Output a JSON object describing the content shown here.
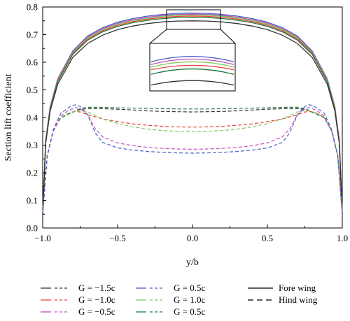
{
  "chart_data": {
    "type": "line",
    "xlabel": "y/b",
    "ylabel": "Section lift coefficient",
    "xlim": [
      -1.0,
      1.0
    ],
    "ylim": [
      0.0,
      0.8
    ],
    "x_ticks": [
      -1.0,
      -0.5,
      0.0,
      0.5,
      1.0
    ],
    "x_tick_labels": [
      "−1.0",
      "−0.5",
      "0.0",
      "0.5",
      "1.0"
    ],
    "y_ticks": [
      0.0,
      0.1,
      0.2,
      0.3,
      0.4,
      0.5,
      0.6,
      0.7,
      0.8
    ],
    "y_tick_labels": [
      "0.0",
      "0.1",
      "0.2",
      "0.3",
      "0.4",
      "0.5",
      "0.6",
      "0.7",
      "0.8"
    ],
    "grid": false,
    "legend": [
      {
        "label": "G = −1.5c",
        "color": "#333333",
        "style": "solid-dash"
      },
      {
        "label": "G = −1.0c",
        "color": "#e8443a",
        "style": "solid-dash"
      },
      {
        "label": "G = −0.5c",
        "color": "#c04fc0",
        "style": "solid-dash"
      },
      {
        "label": "G = 0.5c",
        "color": "#4a5fbf",
        "style": "solid-dash"
      },
      {
        "label": "G = 1.0c",
        "color": "#7dcc5a",
        "style": "solid-dash"
      },
      {
        "label": "G = 0.5c",
        "color": "#1f7a3c",
        "style": "solid-dash"
      },
      {
        "label": "Fore wing",
        "color": "#000000",
        "style": "solid"
      },
      {
        "label": "Hind wing",
        "color": "#000000",
        "style": "dashed"
      }
    ],
    "fore_wing_series": [
      {
        "color": "#4a5fbf",
        "x": [
          -1.0,
          -0.98,
          -0.95,
          -0.9,
          -0.8,
          -0.7,
          -0.6,
          -0.5,
          -0.4,
          -0.3,
          -0.2,
          -0.1,
          0.0,
          0.1,
          0.2,
          0.3,
          0.4,
          0.5,
          0.6,
          0.7,
          0.8,
          0.9,
          0.95,
          0.98,
          1.0
        ],
        "y": [
          0.05,
          0.32,
          0.44,
          0.54,
          0.64,
          0.695,
          0.725,
          0.745,
          0.758,
          0.767,
          0.773,
          0.777,
          0.778,
          0.777,
          0.773,
          0.767,
          0.758,
          0.745,
          0.725,
          0.695,
          0.64,
          0.54,
          0.44,
          0.32,
          0.05
        ]
      },
      {
        "color": "#c04fc0",
        "x": [
          -1.0,
          -0.98,
          -0.95,
          -0.9,
          -0.8,
          -0.7,
          -0.6,
          -0.5,
          -0.4,
          -0.3,
          -0.2,
          -0.1,
          0.0,
          0.1,
          0.2,
          0.3,
          0.4,
          0.5,
          0.6,
          0.7,
          0.8,
          0.9,
          0.95,
          0.98,
          1.0
        ],
        "y": [
          0.05,
          0.318,
          0.438,
          0.538,
          0.637,
          0.691,
          0.721,
          0.741,
          0.754,
          0.763,
          0.769,
          0.773,
          0.774,
          0.773,
          0.769,
          0.763,
          0.754,
          0.741,
          0.721,
          0.691,
          0.637,
          0.538,
          0.438,
          0.318,
          0.05
        ]
      },
      {
        "color": "#7dcc5a",
        "x": [
          -1.0,
          -0.98,
          -0.95,
          -0.9,
          -0.8,
          -0.7,
          -0.6,
          -0.5,
          -0.4,
          -0.3,
          -0.2,
          -0.1,
          0.0,
          0.1,
          0.2,
          0.3,
          0.4,
          0.5,
          0.6,
          0.7,
          0.8,
          0.9,
          0.95,
          0.98,
          1.0
        ],
        "y": [
          0.05,
          0.316,
          0.436,
          0.535,
          0.634,
          0.688,
          0.718,
          0.738,
          0.751,
          0.76,
          0.766,
          0.77,
          0.771,
          0.77,
          0.766,
          0.76,
          0.751,
          0.738,
          0.718,
          0.688,
          0.634,
          0.535,
          0.436,
          0.316,
          0.05
        ]
      },
      {
        "color": "#e8443a",
        "x": [
          -1.0,
          -0.98,
          -0.95,
          -0.9,
          -0.8,
          -0.7,
          -0.6,
          -0.5,
          -0.4,
          -0.3,
          -0.2,
          -0.1,
          0.0,
          0.1,
          0.2,
          0.3,
          0.4,
          0.5,
          0.6,
          0.7,
          0.8,
          0.9,
          0.95,
          0.98,
          1.0
        ],
        "y": [
          0.05,
          0.314,
          0.434,
          0.532,
          0.631,
          0.684,
          0.714,
          0.734,
          0.747,
          0.756,
          0.762,
          0.766,
          0.767,
          0.766,
          0.762,
          0.756,
          0.747,
          0.734,
          0.714,
          0.684,
          0.631,
          0.532,
          0.434,
          0.314,
          0.05
        ]
      },
      {
        "color": "#1f7a3c",
        "x": [
          -1.0,
          -0.98,
          -0.95,
          -0.9,
          -0.8,
          -0.7,
          -0.6,
          -0.5,
          -0.4,
          -0.3,
          -0.2,
          -0.1,
          0.0,
          0.1,
          0.2,
          0.3,
          0.4,
          0.5,
          0.6,
          0.7,
          0.8,
          0.9,
          0.95,
          0.98,
          1.0
        ],
        "y": [
          0.05,
          0.312,
          0.432,
          0.529,
          0.628,
          0.68,
          0.71,
          0.73,
          0.743,
          0.752,
          0.758,
          0.762,
          0.763,
          0.762,
          0.758,
          0.752,
          0.743,
          0.73,
          0.71,
          0.68,
          0.628,
          0.529,
          0.432,
          0.312,
          0.05
        ]
      },
      {
        "color": "#333333",
        "x": [
          -1.0,
          -0.98,
          -0.95,
          -0.9,
          -0.8,
          -0.7,
          -0.6,
          -0.5,
          -0.4,
          -0.3,
          -0.2,
          -0.1,
          0.0,
          0.1,
          0.2,
          0.3,
          0.4,
          0.5,
          0.6,
          0.7,
          0.8,
          0.9,
          0.95,
          0.98,
          1.0
        ],
        "y": [
          0.05,
          0.306,
          0.424,
          0.52,
          0.617,
          0.668,
          0.698,
          0.718,
          0.731,
          0.74,
          0.746,
          0.749,
          0.75,
          0.749,
          0.746,
          0.74,
          0.731,
          0.718,
          0.698,
          0.668,
          0.617,
          0.52,
          0.424,
          0.306,
          0.05
        ]
      }
    ],
    "hind_wing_series": [
      {
        "color": "#333333",
        "x": [
          -1.0,
          -0.97,
          -0.93,
          -0.88,
          -0.83,
          -0.8,
          -0.78,
          -0.75,
          -0.7,
          -0.6,
          -0.5,
          -0.4,
          -0.3,
          -0.2,
          -0.1,
          0.0,
          0.1,
          0.2,
          0.3,
          0.4,
          0.5,
          0.6,
          0.7,
          0.75,
          0.78,
          0.8,
          0.83,
          0.88,
          0.93,
          0.97,
          1.0
        ],
        "y": [
          0.05,
          0.26,
          0.35,
          0.4,
          0.415,
          0.42,
          0.425,
          0.43,
          0.432,
          0.432,
          0.43,
          0.427,
          0.424,
          0.422,
          0.421,
          0.42,
          0.421,
          0.422,
          0.424,
          0.427,
          0.43,
          0.432,
          0.432,
          0.43,
          0.425,
          0.42,
          0.415,
          0.4,
          0.35,
          0.26,
          0.05
        ]
      },
      {
        "color": "#1f7a3c",
        "x": [
          -1.0,
          -0.97,
          -0.93,
          -0.88,
          -0.83,
          -0.8,
          -0.78,
          -0.75,
          -0.7,
          -0.6,
          -0.5,
          -0.4,
          -0.3,
          -0.2,
          -0.1,
          0.0,
          0.1,
          0.2,
          0.3,
          0.4,
          0.5,
          0.6,
          0.7,
          0.75,
          0.78,
          0.8,
          0.83,
          0.88,
          0.93,
          0.97,
          1.0
        ],
        "y": [
          0.05,
          0.26,
          0.35,
          0.398,
          0.412,
          0.418,
          0.425,
          0.432,
          0.437,
          0.437,
          0.435,
          0.434,
          0.433,
          0.432,
          0.431,
          0.431,
          0.431,
          0.432,
          0.433,
          0.434,
          0.435,
          0.437,
          0.437,
          0.432,
          0.425,
          0.418,
          0.412,
          0.398,
          0.35,
          0.26,
          0.05
        ]
      },
      {
        "color": "#e8443a",
        "x": [
          -1.0,
          -0.97,
          -0.93,
          -0.88,
          -0.83,
          -0.8,
          -0.78,
          -0.75,
          -0.7,
          -0.6,
          -0.5,
          -0.4,
          -0.3,
          -0.2,
          -0.1,
          0.0,
          0.1,
          0.2,
          0.3,
          0.4,
          0.5,
          0.6,
          0.7,
          0.75,
          0.78,
          0.8,
          0.83,
          0.88,
          0.93,
          0.97,
          1.0
        ],
        "y": [
          0.05,
          0.26,
          0.35,
          0.4,
          0.415,
          0.42,
          0.422,
          0.42,
          0.41,
          0.395,
          0.385,
          0.377,
          0.372,
          0.368,
          0.366,
          0.365,
          0.366,
          0.368,
          0.372,
          0.377,
          0.385,
          0.395,
          0.41,
          0.42,
          0.422,
          0.42,
          0.415,
          0.4,
          0.35,
          0.26,
          0.05
        ]
      },
      {
        "color": "#7dcc5a",
        "x": [
          -1.0,
          -0.97,
          -0.93,
          -0.88,
          -0.83,
          -0.8,
          -0.78,
          -0.75,
          -0.7,
          -0.6,
          -0.5,
          -0.4,
          -0.3,
          -0.2,
          -0.1,
          0.0,
          0.1,
          0.2,
          0.3,
          0.4,
          0.5,
          0.6,
          0.7,
          0.75,
          0.78,
          0.8,
          0.83,
          0.88,
          0.93,
          0.97,
          1.0
        ],
        "y": [
          0.05,
          0.26,
          0.35,
          0.4,
          0.415,
          0.42,
          0.424,
          0.425,
          0.42,
          0.395,
          0.378,
          0.366,
          0.358,
          0.353,
          0.35,
          0.349,
          0.35,
          0.353,
          0.358,
          0.366,
          0.378,
          0.395,
          0.42,
          0.425,
          0.424,
          0.42,
          0.415,
          0.4,
          0.35,
          0.26,
          0.05
        ]
      },
      {
        "color": "#c04fc0",
        "x": [
          -1.0,
          -0.97,
          -0.93,
          -0.88,
          -0.83,
          -0.8,
          -0.78,
          -0.75,
          -0.7,
          -0.65,
          -0.6,
          -0.5,
          -0.4,
          -0.3,
          -0.2,
          -0.1,
          0.0,
          0.1,
          0.2,
          0.3,
          0.4,
          0.5,
          0.6,
          0.65,
          0.7,
          0.75,
          0.78,
          0.8,
          0.83,
          0.88,
          0.93,
          0.97,
          1.0
        ],
        "y": [
          0.05,
          0.26,
          0.35,
          0.405,
          0.425,
          0.432,
          0.436,
          0.432,
          0.41,
          0.36,
          0.33,
          0.308,
          0.298,
          0.292,
          0.288,
          0.286,
          0.285,
          0.286,
          0.288,
          0.292,
          0.298,
          0.308,
          0.33,
          0.36,
          0.41,
          0.432,
          0.436,
          0.432,
          0.425,
          0.405,
          0.35,
          0.26,
          0.05
        ]
      },
      {
        "color": "#4a5fbf",
        "x": [
          -1.0,
          -0.97,
          -0.93,
          -0.88,
          -0.83,
          -0.8,
          -0.78,
          -0.75,
          -0.7,
          -0.65,
          -0.6,
          -0.5,
          -0.4,
          -0.3,
          -0.2,
          -0.1,
          0.0,
          0.1,
          0.2,
          0.3,
          0.4,
          0.5,
          0.6,
          0.65,
          0.7,
          0.75,
          0.78,
          0.8,
          0.83,
          0.88,
          0.93,
          0.97,
          1.0
        ],
        "y": [
          0.05,
          0.26,
          0.355,
          0.415,
          0.435,
          0.443,
          0.446,
          0.44,
          0.41,
          0.345,
          0.31,
          0.29,
          0.282,
          0.277,
          0.274,
          0.272,
          0.271,
          0.272,
          0.274,
          0.277,
          0.282,
          0.29,
          0.31,
          0.345,
          0.41,
          0.44,
          0.446,
          0.443,
          0.435,
          0.415,
          0.355,
          0.26,
          0.05
        ]
      }
    ],
    "inset_zoom": {
      "source_x": [
        -0.2,
        0.2
      ],
      "source_y": [
        0.74,
        0.79
      ],
      "lines": [
        {
          "color": "#4a5fbf",
          "y": [
            0.771,
            0.777,
            0.771
          ]
        },
        {
          "color": "#c04fc0",
          "y": [
            0.768,
            0.774,
            0.768
          ]
        },
        {
          "color": "#7dcc5a",
          "y": [
            0.765,
            0.771,
            0.765
          ]
        },
        {
          "color": "#e8443a",
          "y": [
            0.762,
            0.767,
            0.762
          ]
        },
        {
          "color": "#1f7a3c",
          "y": [
            0.757,
            0.763,
            0.757
          ]
        },
        {
          "color": "#333333",
          "y": [
            0.745,
            0.75,
            0.745
          ]
        }
      ]
    }
  }
}
